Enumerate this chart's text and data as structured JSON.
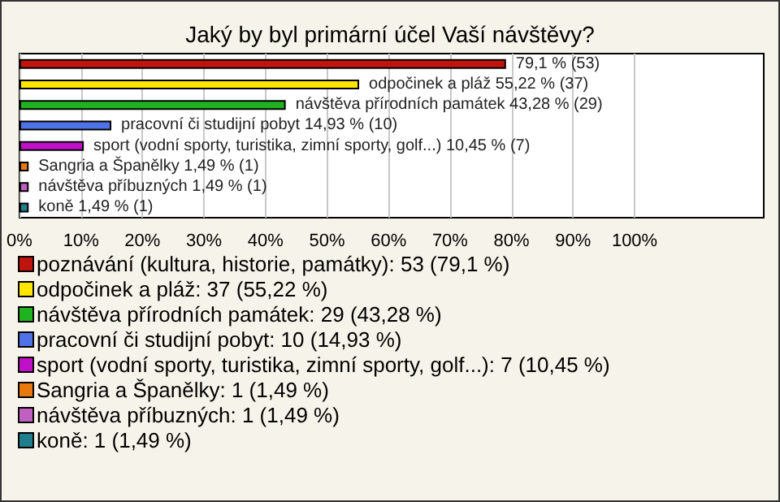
{
  "chart_data": {
    "type": "bar",
    "orientation": "horizontal",
    "stacked": true,
    "title": "Jaký by byl primární účel Vaší návštěvy?",
    "categories": [
      null,
      null,
      null,
      null,
      null,
      null,
      null,
      null
    ],
    "series": [
      {
        "name": "poznávání (kultura, historie, památky): 53 (79,1 %)",
        "color": "#c0150f",
        "values": [
          79.1,
          null,
          null,
          null,
          null,
          null,
          null,
          null
        ],
        "value_labels": [
          "79,1 % (53)",
          null,
          null,
          null,
          null,
          null,
          null,
          null
        ]
      },
      {
        "name": "odpočinek a pláž: 37 (55,22 %)",
        "color": "#ffe500",
        "values": [
          null,
          55.22,
          null,
          null,
          null,
          null,
          null,
          null
        ],
        "value_labels": [
          null,
          "odpočinek a pláž 55,22 % (37)",
          null,
          null,
          null,
          null,
          null,
          null
        ]
      },
      {
        "name": "návštěva přírodních památek: 29 (43,28 %)",
        "color": "#1fb31f",
        "values": [
          null,
          null,
          43.28,
          null,
          null,
          null,
          null,
          null
        ],
        "value_labels": [
          null,
          null,
          "návštěva přírodních památek 43,28 % (29)",
          null,
          null,
          null,
          null,
          null
        ]
      },
      {
        "name": "pracovní či studijní pobyt: 10 (14,93 %)",
        "color": "#4f73e6",
        "values": [
          null,
          null,
          null,
          14.93,
          null,
          null,
          null,
          null
        ],
        "value_labels": [
          null,
          null,
          null,
          "pracovní či studijní pobyt 14,93 % (10)",
          null,
          null,
          null,
          null
        ]
      },
      {
        "name": "sport (vodní sporty, turistika, zimní sporty, golf...): 7 (10,45 %)",
        "color": "#c010c8",
        "values": [
          null,
          null,
          null,
          null,
          10.45,
          null,
          null,
          null
        ],
        "value_labels": [
          null,
          null,
          null,
          null,
          "sport (vodní sporty, turistika, zimní sporty, golf...) 10,45 % (7)",
          null,
          null,
          null
        ]
      },
      {
        "name": "Sangria a Španělky: 1 (1,49 %)",
        "color": "#e87810",
        "values": [
          null,
          null,
          null,
          null,
          null,
          1.49,
          null,
          null
        ],
        "value_labels": [
          null,
          null,
          null,
          null,
          null,
          "Sangria a Španělky 1,49 % (1)",
          null,
          null
        ]
      },
      {
        "name": "návštěva příbuzných: 1 (1,49 %)",
        "color": "#c060c0",
        "values": [
          null,
          null,
          null,
          null,
          null,
          null,
          1.49,
          null
        ],
        "value_labels": [
          null,
          null,
          null,
          null,
          null,
          null,
          "návštěva příbuzných 1,49 % (1)",
          null
        ]
      },
      {
        "name": "koně: 1 (1,49 %)",
        "color": "#1f7f8f",
        "values": [
          null,
          null,
          null,
          null,
          null,
          null,
          null,
          1.49
        ],
        "value_labels": [
          null,
          null,
          null,
          null,
          null,
          null,
          null,
          "koně 1,49 % (1)"
        ]
      }
    ],
    "xlim": [
      0,
      121
    ],
    "xticks": [
      {
        "value": 0,
        "label": "0%"
      },
      {
        "value": 10,
        "label": "10%"
      },
      {
        "value": 20,
        "label": "20%"
      },
      {
        "value": 30,
        "label": "30%"
      },
      {
        "value": 40,
        "label": "40%"
      },
      {
        "value": 50,
        "label": "50%"
      },
      {
        "value": 60,
        "label": "60%"
      },
      {
        "value": 70,
        "label": "70%"
      },
      {
        "value": 80,
        "label": "80%"
      },
      {
        "value": 90,
        "label": "90%"
      },
      {
        "value": 100,
        "label": "100%"
      }
    ],
    "grid": "x",
    "legend": "bottom",
    "tick_labels": "x"
  }
}
